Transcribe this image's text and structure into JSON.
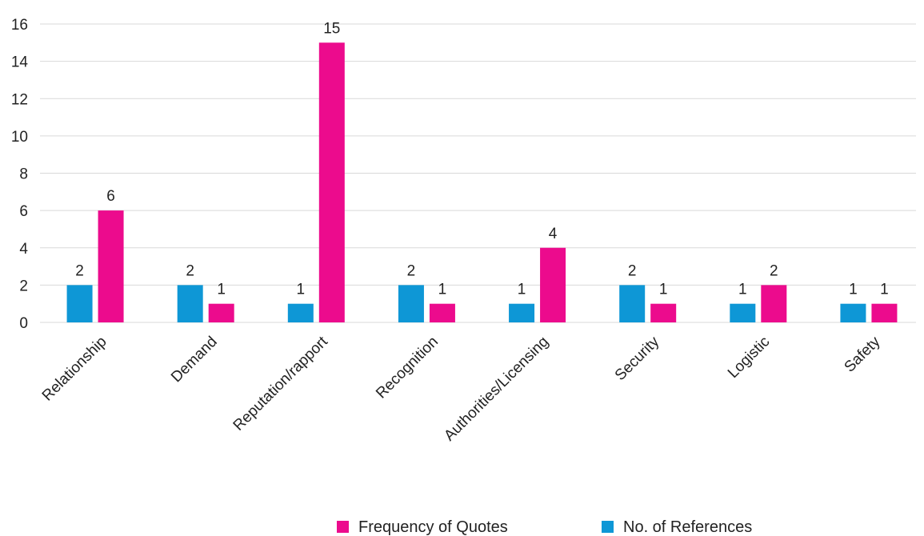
{
  "chart_data": {
    "type": "bar",
    "categories": [
      "Relationship",
      "Demand",
      "Reputation/rapport",
      "Recognition",
      "Authorities/Licensing",
      "Security",
      "Logistic",
      "Safety"
    ],
    "series": [
      {
        "name": "No. of References",
        "color": "#0e97d6",
        "values": [
          2,
          2,
          1,
          2,
          1,
          2,
          1,
          1
        ]
      },
      {
        "name": "Frequency of Quotes",
        "color": "#ec0b8d",
        "values": [
          6,
          1,
          15,
          1,
          4,
          1,
          2,
          1
        ]
      }
    ],
    "ylim": [
      0,
      16
    ],
    "yticks": [
      0,
      2,
      4,
      6,
      8,
      10,
      12,
      14,
      16
    ],
    "grid": true,
    "legend": {
      "position": "bottom",
      "order": [
        "Frequency of Quotes",
        "No. of References"
      ]
    }
  }
}
